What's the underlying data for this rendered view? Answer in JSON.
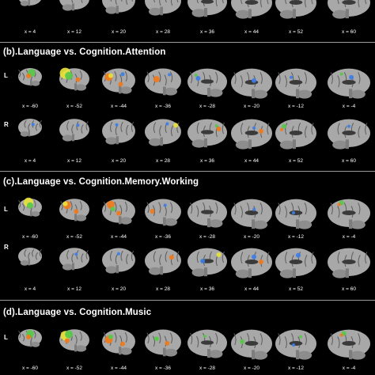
{
  "x_left": [
    "x = -60",
    "x = -52",
    "x = -44",
    "x = -36",
    "x = -28",
    "x = -20",
    "x = -12",
    "x = -4"
  ],
  "x_right": [
    "x = 4",
    "x = 12",
    "x = 20",
    "x = 28",
    "x = 36",
    "x = 44",
    "x = 52",
    "x = 60"
  ],
  "hemi": {
    "left": "L",
    "right": "R"
  },
  "panels": {
    "b": {
      "title": "(b).Language vs. Cognition.Attention"
    },
    "c": {
      "title": "(c).Language vs. Cognition.Memory.Working"
    },
    "d": {
      "title": "(d).Language vs. Cognition.Music"
    }
  },
  "colors": {
    "background": "#000000",
    "brain": "#a8a8a8",
    "hot": "#f07a1a",
    "yellow": "#e8e23a",
    "green": "#58c84a",
    "blue": "#3d7ee8",
    "separator": "#9a9a9a"
  }
}
